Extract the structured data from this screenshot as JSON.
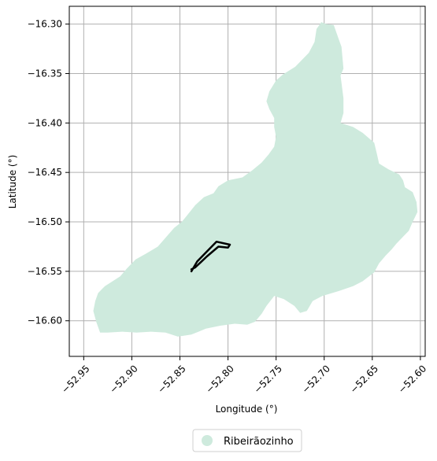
{
  "chart_data": {
    "type": "map",
    "xlabel": "Longitude (°)",
    "ylabel": "Latitude (°)",
    "xlim": [
      -52.965,
      -52.595
    ],
    "ylim": [
      -16.636,
      -16.282
    ],
    "xticks": [
      -52.95,
      -52.9,
      -52.85,
      -52.8,
      -52.75,
      -52.7,
      -52.65,
      -52.6
    ],
    "xtick_labels": [
      "−52.95",
      "−52.90",
      "−52.85",
      "−52.80",
      "−52.75",
      "−52.70",
      "−52.65",
      "−52.60"
    ],
    "yticks": [
      -16.3,
      -16.35,
      -16.4,
      -16.45,
      -16.5,
      -16.55,
      -16.6
    ],
    "ytick_labels": [
      "−16.30",
      "−16.35",
      "−16.40",
      "−16.45",
      "−16.50",
      "−16.55",
      "−16.60"
    ],
    "grid": true,
    "legend_position": "bottom-center",
    "legend": [
      {
        "label": "Ribeirãozinho",
        "color": "#ceeadd"
      }
    ],
    "region": {
      "name": "Ribeirãozinho",
      "color": "#ceeadd",
      "outline": [
        [
          -52.933,
          -16.612
        ],
        [
          -52.937,
          -16.601
        ],
        [
          -52.94,
          -16.59
        ],
        [
          -52.938,
          -16.58
        ],
        [
          -52.935,
          -16.572
        ],
        [
          -52.928,
          -16.565
        ],
        [
          -52.92,
          -16.56
        ],
        [
          -52.912,
          -16.555
        ],
        [
          -52.905,
          -16.547
        ],
        [
          -52.896,
          -16.538
        ],
        [
          -52.885,
          -16.532
        ],
        [
          -52.873,
          -16.525
        ],
        [
          -52.865,
          -16.516
        ],
        [
          -52.856,
          -16.506
        ],
        [
          -52.848,
          -16.5
        ],
        [
          -52.843,
          -16.494
        ],
        [
          -52.834,
          -16.483
        ],
        [
          -52.825,
          -16.475
        ],
        [
          -52.815,
          -16.471
        ],
        [
          -52.81,
          -16.464
        ],
        [
          -52.8,
          -16.458
        ],
        [
          -52.785,
          -16.455
        ],
        [
          -52.775,
          -16.448
        ],
        [
          -52.765,
          -16.44
        ],
        [
          -52.758,
          -16.432
        ],
        [
          -52.752,
          -16.424
        ],
        [
          -52.75,
          -16.414
        ],
        [
          -52.752,
          -16.404
        ],
        [
          -52.752,
          -16.395
        ],
        [
          -52.757,
          -16.386
        ],
        [
          -52.76,
          -16.378
        ],
        [
          -52.757,
          -16.368
        ],
        [
          -52.75,
          -16.357
        ],
        [
          -52.743,
          -16.351
        ],
        [
          -52.73,
          -16.343
        ],
        [
          -52.716,
          -16.329
        ],
        [
          -52.71,
          -16.318
        ],
        [
          -52.708,
          -16.305
        ],
        [
          -52.703,
          -16.298
        ],
        [
          -52.698,
          -16.3
        ],
        [
          -52.69,
          -16.301
        ],
        [
          -52.685,
          -16.315
        ],
        [
          -52.682,
          -16.323
        ],
        [
          -52.68,
          -16.345
        ],
        [
          -52.683,
          -16.352
        ],
        [
          -52.68,
          -16.375
        ],
        [
          -52.68,
          -16.39
        ],
        [
          -52.683,
          -16.4
        ],
        [
          -52.67,
          -16.404
        ],
        [
          -52.66,
          -16.41
        ],
        [
          -52.648,
          -16.42
        ],
        [
          -52.645,
          -16.432
        ],
        [
          -52.643,
          -16.441
        ],
        [
          -52.633,
          -16.447
        ],
        [
          -52.622,
          -16.452
        ],
        [
          -52.618,
          -16.458
        ],
        [
          -52.616,
          -16.465
        ],
        [
          -52.608,
          -16.47
        ],
        [
          -52.604,
          -16.48
        ],
        [
          -52.603,
          -16.49
        ],
        [
          -52.608,
          -16.5
        ],
        [
          -52.612,
          -16.509
        ],
        [
          -52.618,
          -16.515
        ],
        [
          -52.625,
          -16.522
        ],
        [
          -52.63,
          -16.528
        ],
        [
          -52.636,
          -16.534
        ],
        [
          -52.643,
          -16.542
        ],
        [
          -52.648,
          -16.551
        ],
        [
          -52.66,
          -16.56
        ],
        [
          -52.67,
          -16.565
        ],
        [
          -52.685,
          -16.57
        ],
        [
          -52.702,
          -16.575
        ],
        [
          -52.712,
          -16.58
        ],
        [
          -52.718,
          -16.59
        ],
        [
          -52.725,
          -16.592
        ],
        [
          -52.731,
          -16.585
        ],
        [
          -52.742,
          -16.578
        ],
        [
          -52.752,
          -16.575
        ],
        [
          -52.76,
          -16.585
        ],
        [
          -52.765,
          -16.593
        ],
        [
          -52.772,
          -16.601
        ],
        [
          -52.78,
          -16.604
        ],
        [
          -52.793,
          -16.603
        ],
        [
          -52.808,
          -16.605
        ],
        [
          -52.823,
          -16.608
        ],
        [
          -52.838,
          -16.614
        ],
        [
          -52.852,
          -16.616
        ],
        [
          -52.865,
          -16.612
        ],
        [
          -52.88,
          -16.611
        ],
        [
          -52.895,
          -16.612
        ],
        [
          -52.91,
          -16.611
        ],
        [
          -52.925,
          -16.612
        ]
      ]
    },
    "track": {
      "color": "#000000",
      "points": [
        [
          -52.838,
          -16.55
        ],
        [
          -52.832,
          -16.54
        ],
        [
          -52.822,
          -16.53
        ],
        [
          -52.812,
          -16.52
        ],
        [
          -52.798,
          -16.523
        ],
        [
          -52.8,
          -16.526
        ],
        [
          -52.81,
          -16.525
        ],
        [
          -52.822,
          -16.535
        ],
        [
          -52.834,
          -16.546
        ],
        [
          -52.838,
          -16.548
        ]
      ]
    }
  }
}
